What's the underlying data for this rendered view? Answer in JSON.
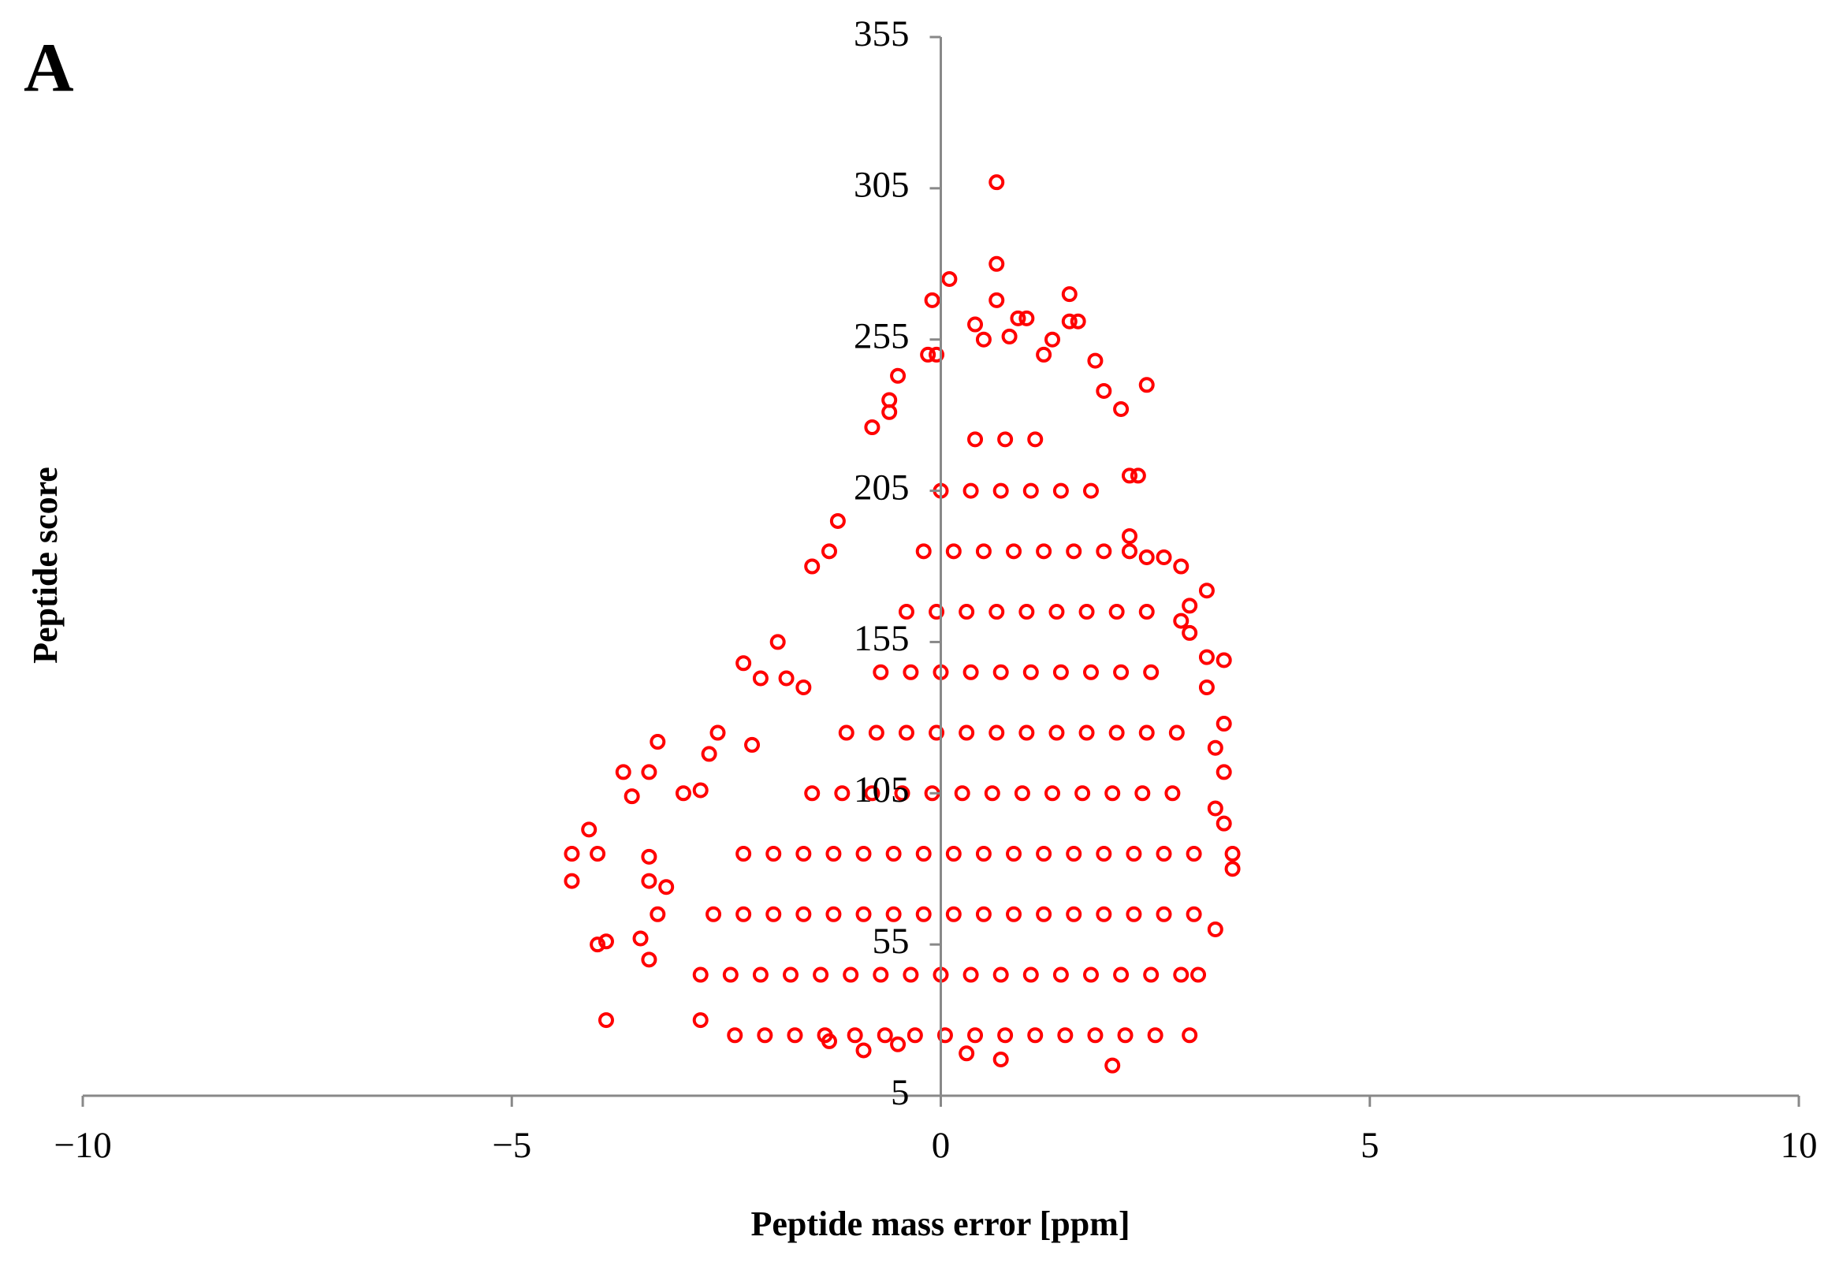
{
  "chart_data": {
    "type": "scatter",
    "title": "A",
    "x_label": "Peptide mass error [ppm]",
    "y_label": "Peptide score",
    "color": "#ff0000",
    "xlim": [
      -10,
      10
    ],
    "xticks": [
      {
        "value": -10,
        "label": "−10"
      },
      {
        "value": -5,
        "label": "−5"
      },
      0,
      5,
      10
    ],
    "ylim": [
      5,
      355
    ],
    "yticks": [
      5,
      55,
      105,
      155,
      205,
      255,
      305,
      355
    ],
    "x": [
      0.65,
      0.65,
      0.65,
      0.1,
      -0.1,
      1.5,
      1.5,
      1.6,
      0.9,
      1.0,
      0.4,
      -0.15,
      -0.05,
      -0.5,
      2.4,
      1.8,
      1.2,
      1.3,
      0.8,
      0.5,
      -0.6,
      -0.6,
      -0.8,
      2.1,
      1.9,
      2.2,
      2.3,
      -1.2,
      -1.5,
      -1.3,
      2.2,
      2.4,
      2.6,
      2.8,
      3.1,
      2.9,
      2.8,
      2.9,
      3.1,
      3.3,
      3.1,
      3.3,
      3.3,
      3.2,
      3.2,
      3.3,
      3.4,
      3.4,
      -1.9,
      -2.3,
      -2.1,
      -1.8,
      -1.6,
      -2.6,
      -2.2,
      -2.7,
      -3.3,
      -3.7,
      -3.4,
      -3.6,
      -3.0,
      -2.8,
      -4.1,
      -4.3,
      -4.0,
      -4.3,
      -3.4,
      -3.4,
      -3.2,
      -3.3,
      -4.0,
      -3.9,
      -3.5,
      -3.4,
      -3.9,
      -2.8,
      -1.3,
      -0.9,
      -0.5,
      0.7,
      2.0,
      2.9,
      3.0,
      3.2,
      0.3,
      -2.4,
      -2.05,
      -1.7,
      -1.35,
      -1.0,
      -0.65,
      -0.3,
      0.05,
      0.4,
      0.75,
      1.1,
      1.45,
      1.8,
      2.15,
      2.5,
      -2.8,
      -2.45,
      -2.1,
      -1.75,
      -1.4,
      -1.05,
      -0.7,
      -0.35,
      0,
      0.35,
      0.7,
      1.05,
      1.4,
      1.75,
      2.1,
      2.45,
      2.8,
      -2.65,
      -2.3,
      -1.95,
      -1.6,
      -1.25,
      -0.9,
      -0.55,
      -0.2,
      0.15,
      0.5,
      0.85,
      1.2,
      1.55,
      1.9,
      2.25,
      2.6,
      2.95,
      -2.3,
      -1.95,
      -1.6,
      -1.25,
      -0.9,
      -0.55,
      -0.2,
      0.15,
      0.5,
      0.85,
      1.2,
      1.55,
      1.9,
      2.25,
      2.6,
      2.95,
      -1.5,
      -1.15,
      -0.8,
      -0.45,
      -0.1,
      0.25,
      0.6,
      0.95,
      1.3,
      1.65,
      2.0,
      2.35,
      2.7,
      -1.1,
      -0.75,
      -0.4,
      -0.05,
      0.3,
      0.65,
      1.0,
      1.35,
      1.7,
      2.05,
      2.4,
      2.75,
      -0.7,
      -0.35,
      0,
      0.35,
      0.7,
      1.05,
      1.4,
      1.75,
      2.1,
      2.45,
      -0.4,
      -0.05,
      0.3,
      0.65,
      1.0,
      1.35,
      1.7,
      2.05,
      2.4,
      -0.2,
      0.15,
      0.5,
      0.85,
      1.2,
      1.55,
      1.9,
      2.2,
      0,
      0.35,
      0.7,
      1.05,
      1.4,
      1.75,
      0.4,
      0.75,
      1.1
    ],
    "values": [
      307,
      280,
      268,
      275,
      268,
      270,
      261,
      261,
      262,
      262,
      260,
      250,
      250,
      243,
      240,
      248,
      250,
      255,
      256,
      255,
      235,
      231,
      226,
      232,
      238,
      210,
      210,
      195,
      180,
      185,
      190,
      183,
      183,
      180,
      172,
      167,
      162,
      158,
      150,
      149,
      140,
      128,
      112,
      120,
      100,
      95,
      85,
      80,
      155,
      148,
      143,
      143,
      140,
      125,
      121,
      118,
      122,
      112,
      112,
      104,
      105,
      106,
      93,
      85,
      85,
      76,
      84,
      76,
      74,
      65,
      55,
      56,
      57,
      50,
      30,
      30,
      23,
      20,
      22,
      17,
      15,
      25,
      45,
      60,
      19,
      25,
      25,
      25,
      25,
      25,
      25,
      25,
      25,
      25,
      25,
      25,
      25,
      25,
      25,
      25,
      45,
      45,
      45,
      45,
      45,
      45,
      45,
      45,
      45,
      45,
      45,
      45,
      45,
      45,
      45,
      45,
      45,
      65,
      65,
      65,
      65,
      65,
      65,
      65,
      65,
      65,
      65,
      65,
      65,
      65,
      65,
      65,
      65,
      65,
      85,
      85,
      85,
      85,
      85,
      85,
      85,
      85,
      85,
      85,
      85,
      85,
      85,
      85,
      85,
      85,
      105,
      105,
      105,
      105,
      105,
      105,
      105,
      105,
      105,
      105,
      105,
      105,
      105,
      125,
      125,
      125,
      125,
      125,
      125,
      125,
      125,
      125,
      125,
      125,
      125,
      145,
      145,
      145,
      145,
      145,
      145,
      145,
      145,
      145,
      145,
      165,
      165,
      165,
      165,
      165,
      165,
      165,
      165,
      165,
      185,
      185,
      185,
      185,
      185,
      185,
      185,
      185,
      205,
      205,
      205,
      205,
      205,
      205,
      222,
      222,
      222
    ]
  }
}
